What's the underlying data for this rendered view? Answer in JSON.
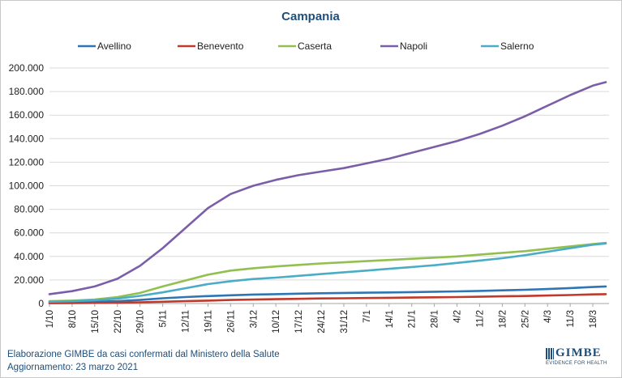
{
  "chart_data": {
    "type": "line",
    "title": "Campania",
    "xlabel": "",
    "ylabel": "",
    "ylim": [
      0,
      200000
    ],
    "y_ticks": [
      "0",
      "20.000",
      "40.000",
      "60.000",
      "80.000",
      "100.000",
      "120.000",
      "140.000",
      "160.000",
      "180.000",
      "200.000"
    ],
    "x_ticks": [
      "1/10",
      "8/10",
      "15/10",
      "22/10",
      "29/10",
      "5/11",
      "12/11",
      "19/11",
      "26/11",
      "3/12",
      "10/12",
      "17/12",
      "24/12",
      "31/12",
      "7/1",
      "14/1",
      "21/1",
      "28/1",
      "4/2",
      "11/2",
      "18/2",
      "25/2",
      "4/3",
      "11/3",
      "18/3"
    ],
    "x": [
      "2020-10-01",
      "2020-10-08",
      "2020-10-15",
      "2020-10-22",
      "2020-10-29",
      "2020-11-05",
      "2020-11-12",
      "2020-11-19",
      "2020-11-26",
      "2020-12-03",
      "2020-12-10",
      "2020-12-17",
      "2020-12-24",
      "2020-12-31",
      "2021-01-07",
      "2021-01-14",
      "2021-01-21",
      "2021-01-28",
      "2021-02-04",
      "2021-02-11",
      "2021-02-18",
      "2021-02-25",
      "2021-03-04",
      "2021-03-11",
      "2021-03-18",
      "2021-03-22"
    ],
    "grid": true,
    "legend_position": "top",
    "series": [
      {
        "name": "Avellino",
        "color": "#2e75b6",
        "values": [
          1000,
          1200,
          1500,
          2000,
          3000,
          4500,
          5500,
          6300,
          7000,
          7600,
          8000,
          8400,
          8700,
          9000,
          9200,
          9400,
          9700,
          10000,
          10300,
          10700,
          11200,
          11700,
          12300,
          13100,
          14000,
          14500
        ]
      },
      {
        "name": "Benevento",
        "color": "#c0392b",
        "values": [
          300,
          400,
          550,
          700,
          1000,
          1500,
          2000,
          2500,
          3000,
          3400,
          3700,
          4000,
          4300,
          4500,
          4700,
          4900,
          5100,
          5300,
          5500,
          5800,
          6100,
          6400,
          6800,
          7200,
          7800,
          8000
        ]
      },
      {
        "name": "Caserta",
        "color": "#92c050",
        "values": [
          2000,
          2500,
          3400,
          5500,
          9000,
          14500,
          19500,
          24500,
          28000,
          30000,
          31500,
          32800,
          34000,
          35000,
          36000,
          37000,
          38000,
          39000,
          40000,
          41500,
          43000,
          44500,
          46500,
          48500,
          50500,
          51500
        ]
      },
      {
        "name": "Napoli",
        "color": "#7b5ea7",
        "values": [
          8000,
          10500,
          14500,
          21000,
          32000,
          47000,
          64000,
          81000,
          93000,
          100000,
          105000,
          109000,
          112000,
          115000,
          119000,
          123000,
          128000,
          133000,
          138000,
          144000,
          151000,
          159000,
          168000,
          177000,
          185000,
          188000
        ]
      },
      {
        "name": "Salerno",
        "color": "#4bacc6",
        "values": [
          1500,
          2000,
          2800,
          4200,
          6500,
          9500,
          13000,
          16500,
          19000,
          20800,
          22000,
          23500,
          25000,
          26500,
          28000,
          29500,
          31000,
          32500,
          34500,
          36500,
          38500,
          41000,
          44000,
          47000,
          50000,
          51000
        ]
      }
    ]
  },
  "footer": {
    "line1": "Elaborazione GIMBE da casi confermati dal Ministero della Salute",
    "line2": "Aggiornamento: 23 marzo 2021"
  },
  "logo": {
    "word": "GIMBE",
    "tagline": "EVIDENCE FOR HEALTH"
  }
}
